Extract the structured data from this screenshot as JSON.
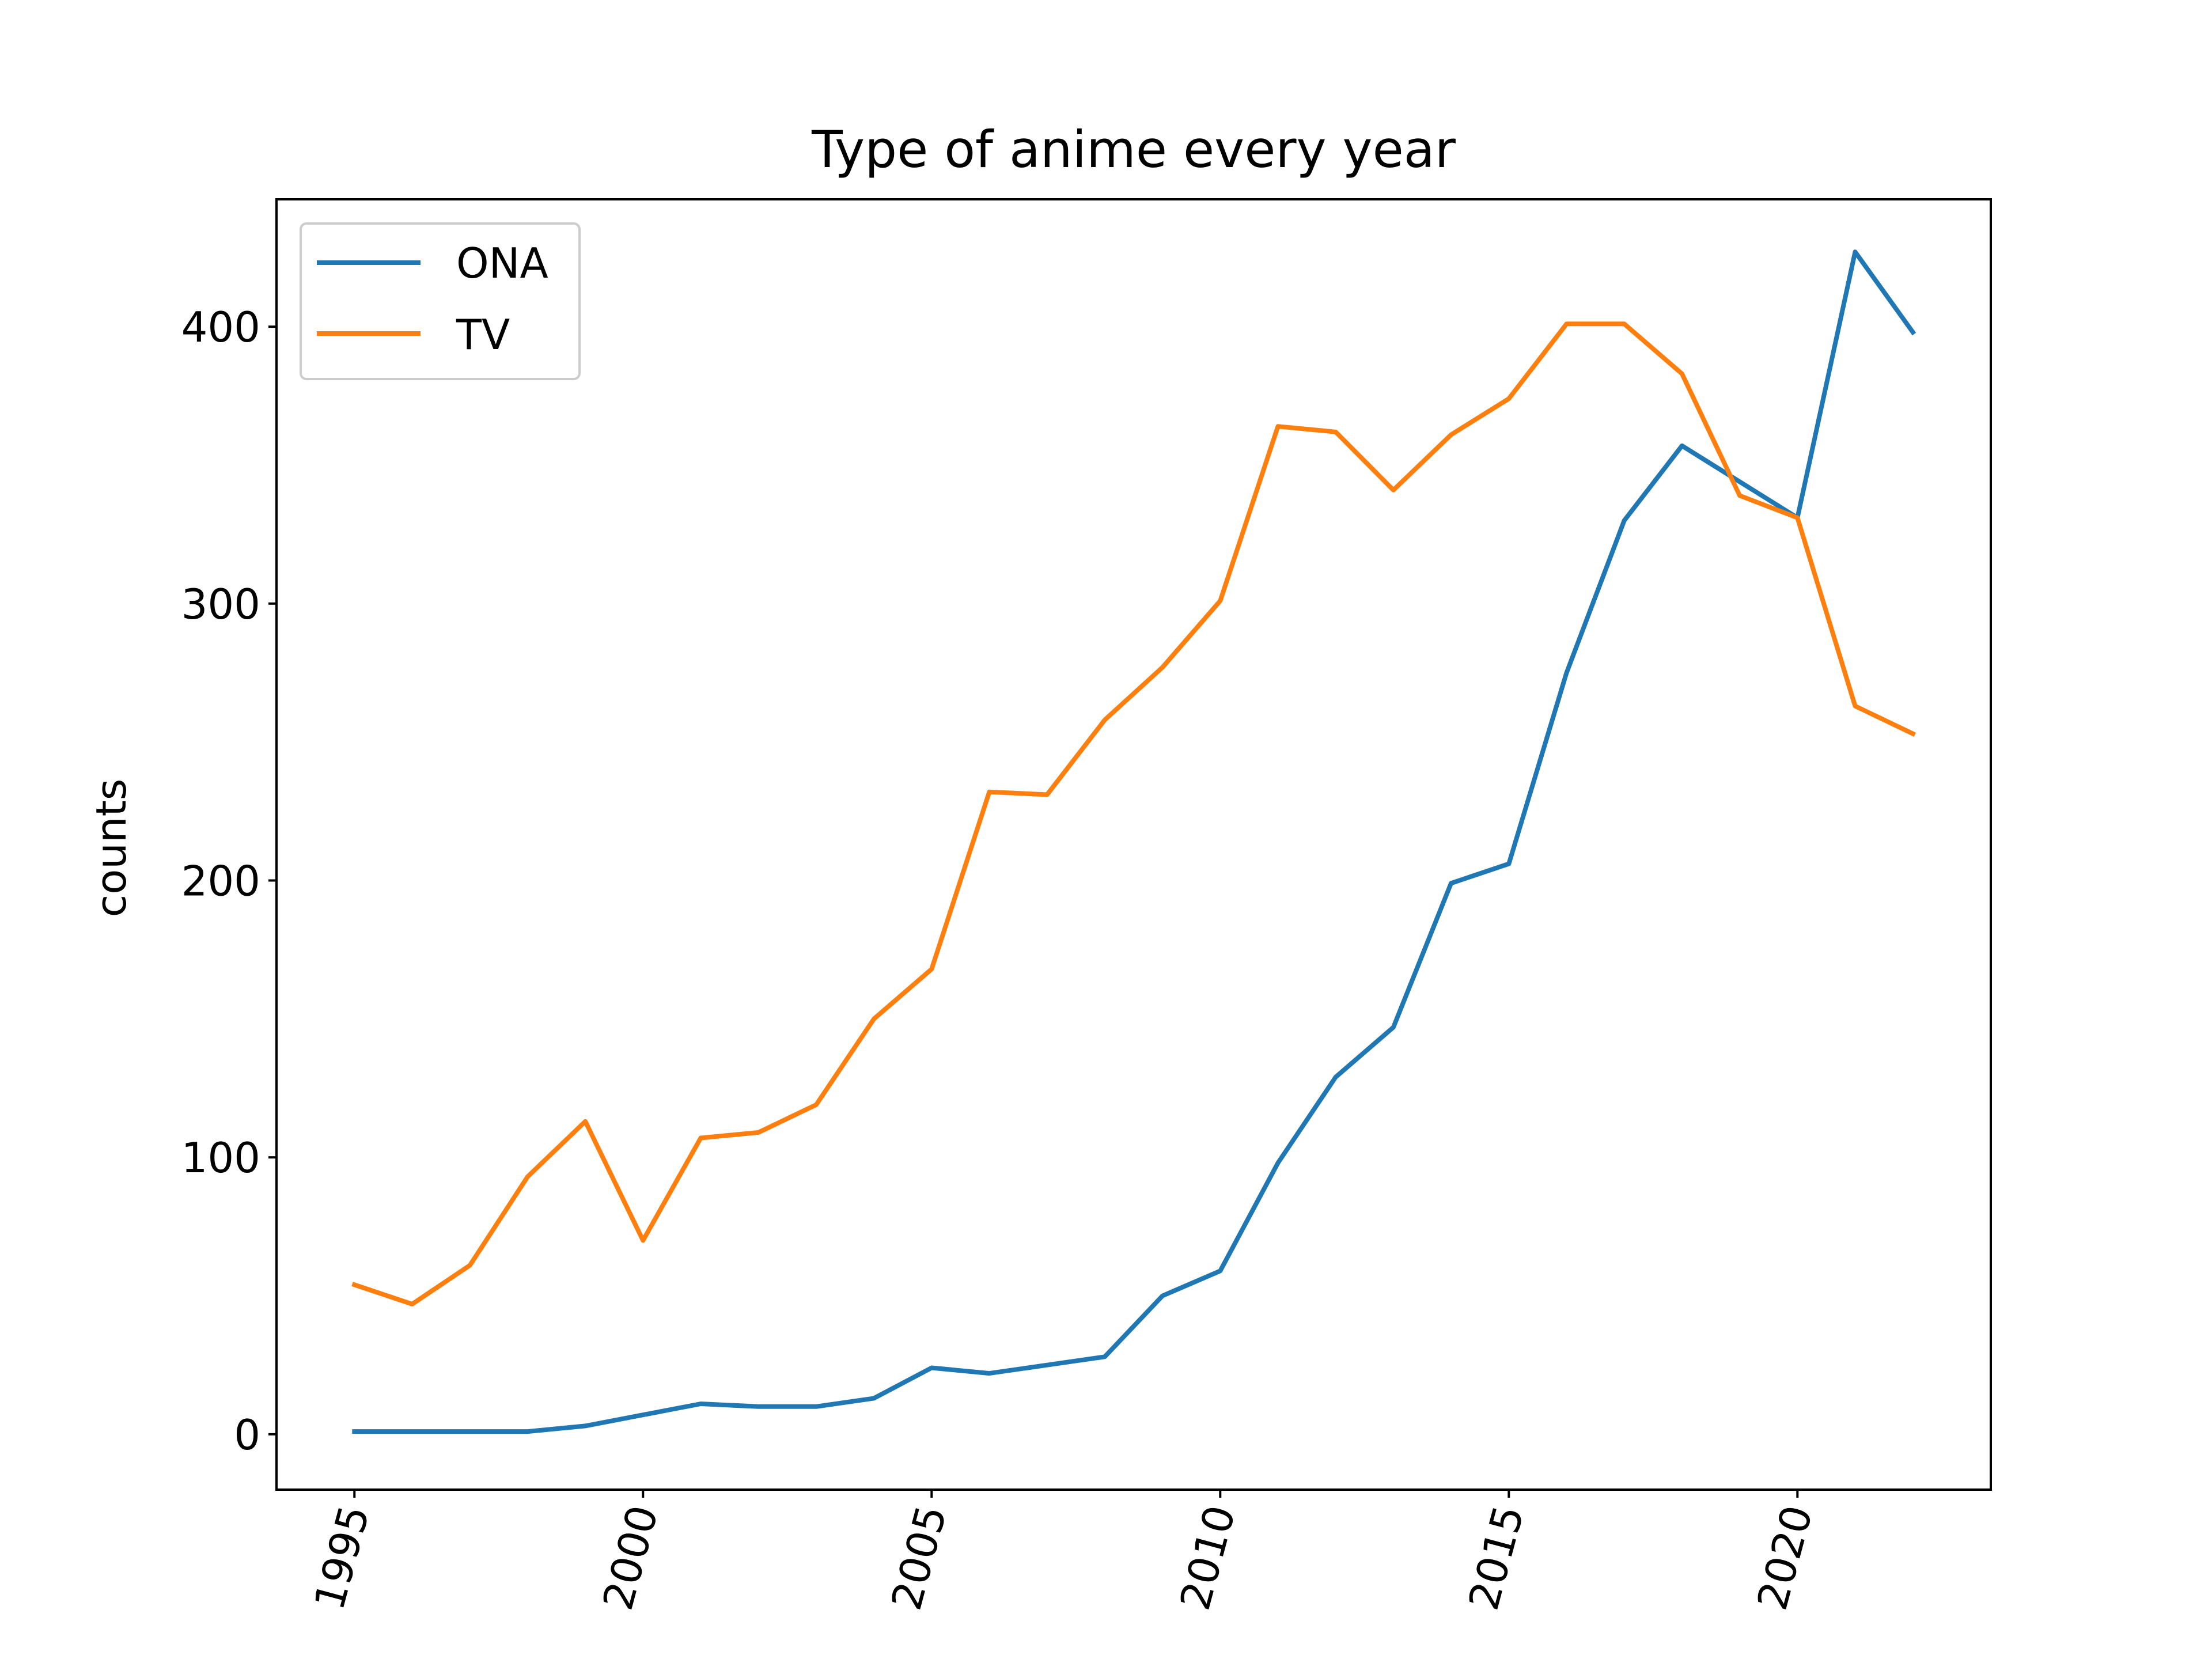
{
  "chart_data": {
    "type": "line",
    "title": "Type of anime every year",
    "xlabel": "",
    "ylabel": "counts",
    "xlim": [
      1993.65,
      2023.35
    ],
    "ylim": [
      -20,
      446
    ],
    "xticks": [
      1995,
      2000,
      2005,
      2010,
      2015,
      2020
    ],
    "yticks": [
      0,
      100,
      200,
      300,
      400
    ],
    "x_tick_rotation": -75,
    "grid": false,
    "legend_position": "top-left",
    "x": [
      1995,
      1996,
      1997,
      1998,
      1999,
      2000,
      2001,
      2002,
      2003,
      2004,
      2005,
      2006,
      2007,
      2008,
      2009,
      2010,
      2011,
      2012,
      2013,
      2014,
      2015,
      2016,
      2017,
      2018,
      2019,
      2020,
      2021,
      2022
    ],
    "series": [
      {
        "name": "ONA",
        "color": "#1f77b4",
        "values": [
          1,
          1,
          1,
          1,
          3,
          7,
          11,
          10,
          10,
          13,
          24,
          22,
          25,
          28,
          50,
          59,
          98,
          129,
          147,
          199,
          206,
          275,
          330,
          357,
          344,
          331,
          427,
          398
        ]
      },
      {
        "name": "TV",
        "color": "#ff7f0e",
        "values": [
          54,
          47,
          61,
          93,
          113,
          70,
          107,
          109,
          119,
          150,
          168,
          232,
          231,
          258,
          277,
          301,
          364,
          362,
          341,
          361,
          374,
          401,
          401,
          383,
          339,
          331,
          263,
          253
        ]
      }
    ]
  }
}
